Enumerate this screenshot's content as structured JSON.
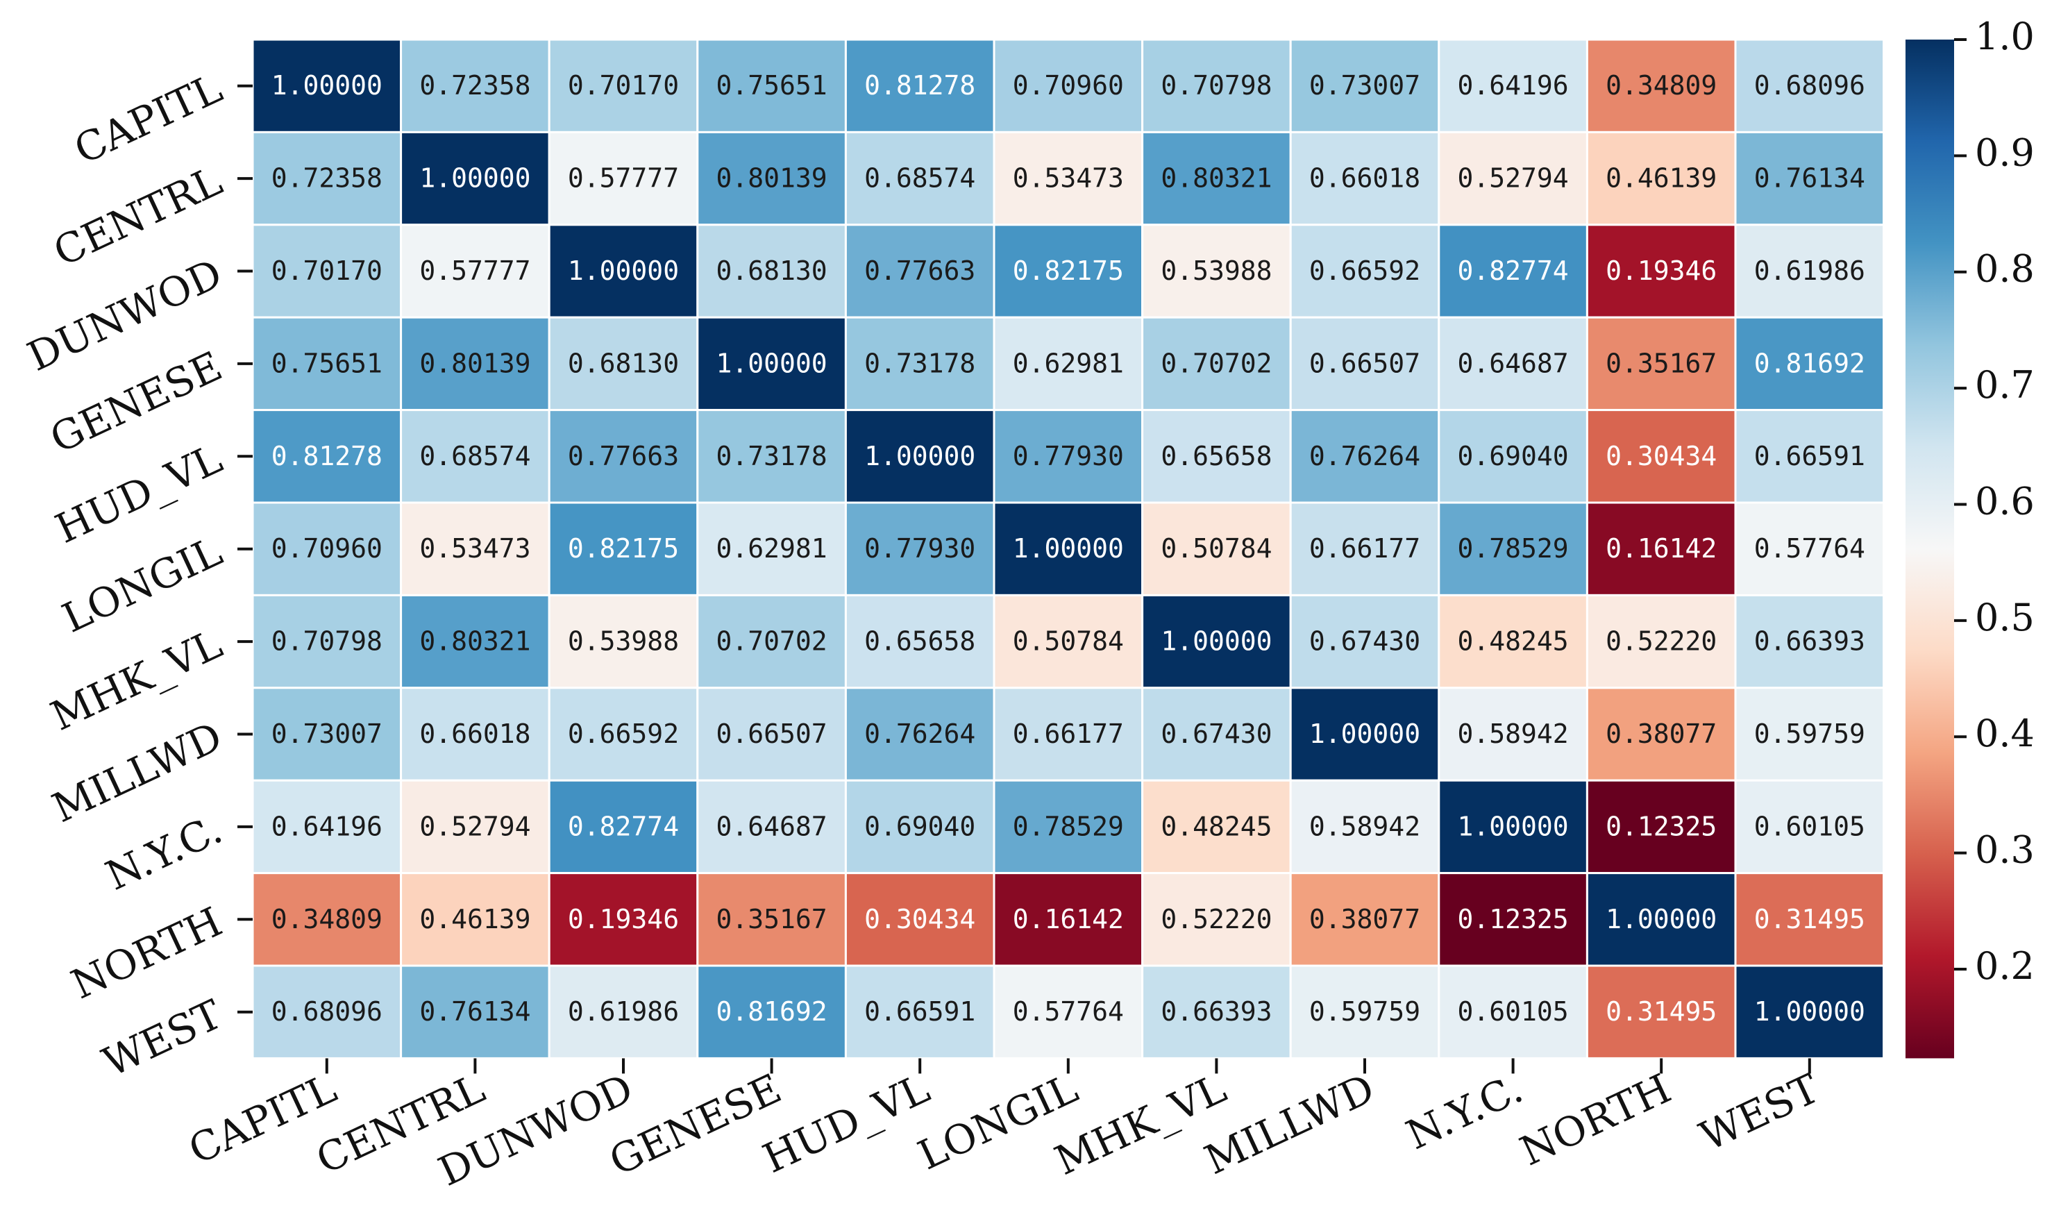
{
  "chart_data": {
    "type": "heatmap",
    "title": "",
    "xlabel": "",
    "ylabel": "",
    "x_categories": [
      "CAPITL",
      "CENTRL",
      "DUNWOD",
      "GENESE",
      "HUD_VL",
      "LONGIL",
      "MHK_VL",
      "MILLWD",
      "N.Y.C.",
      "NORTH",
      "WEST"
    ],
    "y_categories": [
      "CAPITL",
      "CENTRL",
      "DUNWOD",
      "GENESE",
      "HUD_VL",
      "LONGIL",
      "MHK_VL",
      "MILLWD",
      "N.Y.C.",
      "NORTH",
      "WEST"
    ],
    "values": [
      [
        1.0,
        0.72358,
        0.7017,
        0.75651,
        0.81278,
        0.7096,
        0.70798,
        0.73007,
        0.64196,
        0.34809,
        0.68096
      ],
      [
        0.72358,
        1.0,
        0.57777,
        0.80139,
        0.68574,
        0.53473,
        0.80321,
        0.66018,
        0.52794,
        0.46139,
        0.76134
      ],
      [
        0.7017,
        0.57777,
        1.0,
        0.6813,
        0.77663,
        0.82175,
        0.53988,
        0.66592,
        0.82774,
        0.19346,
        0.61986
      ],
      [
        0.75651,
        0.80139,
        0.6813,
        1.0,
        0.73178,
        0.62981,
        0.70702,
        0.66507,
        0.64687,
        0.35167,
        0.81692
      ],
      [
        0.81278,
        0.68574,
        0.77663,
        0.73178,
        1.0,
        0.7793,
        0.65658,
        0.76264,
        0.6904,
        0.30434,
        0.66591
      ],
      [
        0.7096,
        0.53473,
        0.82175,
        0.62981,
        0.7793,
        1.0,
        0.50784,
        0.66177,
        0.78529,
        0.16142,
        0.57764
      ],
      [
        0.70798,
        0.80321,
        0.53988,
        0.70702,
        0.65658,
        0.50784,
        1.0,
        0.6743,
        0.48245,
        0.5222,
        0.66393
      ],
      [
        0.73007,
        0.66018,
        0.66592,
        0.66507,
        0.76264,
        0.66177,
        0.6743,
        1.0,
        0.58942,
        0.38077,
        0.59759
      ],
      [
        0.64196,
        0.52794,
        0.82774,
        0.64687,
        0.6904,
        0.78529,
        0.48245,
        0.58942,
        1.0,
        0.12325,
        0.60105
      ],
      [
        0.34809,
        0.46139,
        0.19346,
        0.35167,
        0.30434,
        0.16142,
        0.5222,
        0.38077,
        0.12325,
        1.0,
        0.31495
      ],
      [
        0.68096,
        0.76134,
        0.61986,
        0.81692,
        0.66591,
        0.57764,
        0.66393,
        0.59759,
        0.60105,
        0.31495,
        1.0
      ]
    ],
    "value_format": "0.00000",
    "colormap": "RdBu",
    "vmin": 0.12325,
    "vmax": 1.0,
    "colorbar_ticks": [
      "0.2",
      "0.3",
      "0.4",
      "0.5",
      "0.6",
      "0.7",
      "0.8",
      "0.9",
      "1.0"
    ],
    "colormap_stops": [
      "#67001f",
      "#b2182b",
      "#d6604d",
      "#f4a582",
      "#fddbc7",
      "#f7f7f7",
      "#d1e5f0",
      "#92c5de",
      "#4393c3",
      "#2166ac",
      "#053061"
    ],
    "grid_line_color": "#ffffff"
  }
}
